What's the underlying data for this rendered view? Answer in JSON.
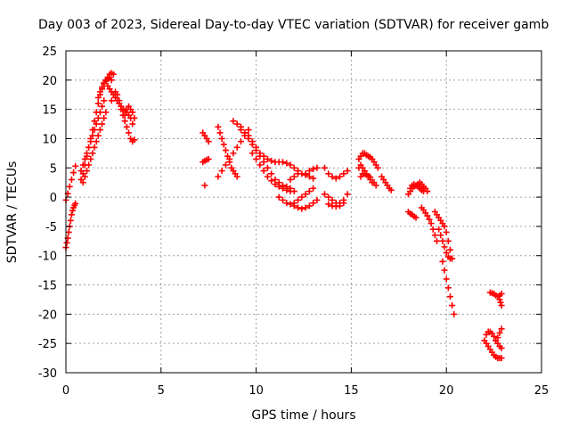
{
  "chart_data": {
    "type": "scatter",
    "title": "Day 003 of 2023, Sidereal Day-to-day VTEC variation (SDTVAR) for receiver gamb",
    "xlabel": "GPS time / hours",
    "ylabel": "SDTVAR / TECUs",
    "xlim": [
      0,
      25
    ],
    "ylim": [
      -30,
      25
    ],
    "xticks": [
      0,
      5,
      10,
      15,
      20,
      25
    ],
    "yticks": [
      -30,
      -25,
      -20,
      -15,
      -10,
      -5,
      0,
      5,
      10,
      15,
      20,
      25
    ],
    "grid": true,
    "marker": "+",
    "color": "#ff0000",
    "segments": [
      {
        "x": [
          0.0,
          0.05,
          0.1,
          0.15,
          0.2,
          0.25,
          0.3,
          0.35,
          0.4,
          0.45,
          0.5
        ],
        "y": [
          -8.6,
          -7.8,
          -7.0,
          -6.0,
          -5.0,
          -4.0,
          -3.0,
          -2.3,
          -1.8,
          -1.4,
          -1.1
        ]
      },
      {
        "x": [
          0.0,
          0.1,
          0.2,
          0.3,
          0.4,
          0.5
        ],
        "y": [
          -0.5,
          0.6,
          1.8,
          3.0,
          4.2,
          5.3
        ]
      },
      {
        "x": [
          0.8,
          0.9,
          1.0,
          1.1,
          1.2,
          1.3,
          1.4,
          1.5,
          1.6,
          1.7,
          1.8,
          1.9,
          2.0,
          2.1,
          2.2,
          2.3,
          2.4,
          2.5
        ],
        "y": [
          3.0,
          4.0,
          5.5,
          7.0,
          8.5,
          10.0,
          11.5,
          13.0,
          14.5,
          16.0,
          17.5,
          18.5,
          19.5,
          20.0,
          20.5,
          21.0,
          21.2,
          21.0
        ]
      },
      {
        "x": [
          0.9,
          1.0,
          1.1,
          1.2,
          1.3,
          1.4,
          1.5,
          1.6,
          1.7,
          1.8,
          1.9,
          2.0,
          2.1
        ],
        "y": [
          2.5,
          3.5,
          4.5,
          5.5,
          6.5,
          7.5,
          8.5,
          9.5,
          10.5,
          11.5,
          12.5,
          13.5,
          14.5
        ]
      },
      {
        "x": [
          0.8,
          0.9,
          1.0,
          1.1,
          1.2,
          1.3,
          1.4,
          1.5,
          1.6,
          1.7,
          1.8,
          1.9,
          2.0
        ],
        "y": [
          4.5,
          5.5,
          6.5,
          7.5,
          8.5,
          9.5,
          10.5,
          11.5,
          12.5,
          13.5,
          14.5,
          15.5,
          16.5
        ]
      },
      {
        "x": [
          1.7,
          1.8,
          1.9,
          2.0,
          2.1,
          2.2,
          2.3,
          2.4
        ],
        "y": [
          17.0,
          18.0,
          18.8,
          19.4,
          19.8,
          20.2,
          20.4,
          20.0
        ]
      },
      {
        "x": [
          2.2,
          2.3,
          2.4,
          2.5,
          2.6,
          2.7,
          2.8,
          2.9,
          3.0,
          3.1,
          3.2,
          3.3,
          3.4,
          3.5
        ],
        "y": [
          19.0,
          18.5,
          18.0,
          17.5,
          17.0,
          16.5,
          16.0,
          15.5,
          15.0,
          14.8,
          14.5,
          14.0,
          13.5,
          12.5
        ]
      },
      {
        "x": [
          2.4,
          2.5,
          2.6,
          2.7,
          2.8,
          2.9,
          3.0,
          3.1,
          3.2,
          3.3,
          3.4,
          3.5,
          3.6
        ],
        "y": [
          16.5,
          17.5,
          18.0,
          17.5,
          16.5,
          15.0,
          14.0,
          13.0,
          12.0,
          11.0,
          10.0,
          9.5,
          9.8
        ]
      },
      {
        "x": [
          3.1,
          3.2,
          3.3,
          3.4,
          3.5,
          3.6
        ],
        "y": [
          14.0,
          15.0,
          15.5,
          15.0,
          14.5,
          13.5
        ]
      },
      {
        "x": [
          7.2,
          7.3,
          7.4,
          7.5
        ],
        "y": [
          11.0,
          10.5,
          10.0,
          9.5
        ]
      },
      {
        "x": [
          7.2,
          7.3,
          7.4,
          7.5
        ],
        "y": [
          6.0,
          6.2,
          6.4,
          6.5
        ]
      },
      {
        "x": [
          7.3
        ],
        "y": [
          2.0
        ]
      },
      {
        "x": [
          8.0,
          8.1,
          8.2,
          8.3,
          8.4,
          8.5,
          8.6,
          8.7,
          8.8,
          8.9,
          9.0
        ],
        "y": [
          12.0,
          11.0,
          10.0,
          9.0,
          8.0,
          7.0,
          6.0,
          5.0,
          4.5,
          4.0,
          3.5
        ]
      },
      {
        "x": [
          8.0,
          8.2,
          8.4,
          8.6,
          8.8,
          9.0,
          9.2,
          9.4,
          9.6
        ],
        "y": [
          3.5,
          4.5,
          5.5,
          6.5,
          7.5,
          8.5,
          9.5,
          10.5,
          11.5
        ]
      },
      {
        "x": [
          8.8,
          9.0,
          9.2,
          9.4,
          9.6,
          9.8,
          10.0,
          10.2,
          10.4,
          10.6,
          10.8,
          11.0,
          11.2,
          11.4,
          11.6,
          11.8
        ],
        "y": [
          13.0,
          12.5,
          12.0,
          11.0,
          10.0,
          9.0,
          8.0,
          7.0,
          6.0,
          5.0,
          4.0,
          3.0,
          2.5,
          2.0,
          1.8,
          1.5
        ]
      },
      {
        "x": [
          9.2,
          9.4,
          9.6,
          9.8,
          10.0,
          10.2,
          10.4,
          10.6,
          10.8,
          11.0,
          11.2,
          11.4,
          11.6,
          11.8,
          12.0,
          12.2
        ],
        "y": [
          11.5,
          11.0,
          10.5,
          9.5,
          8.5,
          7.5,
          7.0,
          6.5,
          6.2,
          6.0,
          6.0,
          6.0,
          5.8,
          5.5,
          5.0,
          4.5
        ]
      },
      {
        "x": [
          9.8,
          10.0,
          10.2,
          10.4,
          10.6,
          10.8,
          11.0,
          11.2,
          11.4,
          11.6,
          11.8,
          12.0
        ],
        "y": [
          7.5,
          6.5,
          5.5,
          4.5,
          3.5,
          2.8,
          2.2,
          1.8,
          1.5,
          1.2,
          1.0,
          1.0
        ]
      },
      {
        "x": [
          11.2,
          11.4,
          11.6,
          11.8,
          12.0,
          12.2,
          12.4,
          12.6,
          12.8,
          13.0
        ],
        "y": [
          0.0,
          -0.5,
          -1.0,
          -1.2,
          -1.0,
          -0.5,
          0.0,
          0.5,
          1.0,
          1.5
        ]
      },
      {
        "x": [
          11.8,
          12.0,
          12.2,
          12.4,
          12.6,
          12.8,
          13.0
        ],
        "y": [
          3.0,
          3.5,
          4.0,
          4.0,
          3.8,
          3.5,
          3.2
        ]
      },
      {
        "x": [
          12.0,
          12.2,
          12.4,
          12.6,
          12.8,
          13.0,
          13.2
        ],
        "y": [
          -1.5,
          -1.8,
          -2.0,
          -1.8,
          -1.5,
          -1.0,
          -0.5
        ]
      },
      {
        "x": [
          12.6,
          12.8,
          13.0,
          13.2
        ],
        "y": [
          4.0,
          4.5,
          4.8,
          5.0
        ]
      },
      {
        "x": [
          13.6,
          13.8,
          14.0,
          14.2,
          14.4,
          14.6,
          14.8
        ],
        "y": [
          5.0,
          4.0,
          3.5,
          3.2,
          3.5,
          4.0,
          4.5
        ]
      },
      {
        "x": [
          13.6,
          13.8,
          14.0,
          14.2,
          14.4,
          14.6,
          14.8
        ],
        "y": [
          0.5,
          0.0,
          -0.5,
          -1.0,
          -1.0,
          -0.5,
          0.5
        ]
      },
      {
        "x": [
          13.8,
          14.0,
          14.2,
          14.4,
          14.6
        ],
        "y": [
          -1.2,
          -1.5,
          -1.6,
          -1.5,
          -1.0
        ]
      },
      {
        "x": [
          15.4,
          15.5,
          15.6,
          15.7,
          15.8,
          15.9,
          16.0,
          16.1,
          16.2,
          16.3,
          16.4
        ],
        "y": [
          6.5,
          7.0,
          7.5,
          7.5,
          7.2,
          7.0,
          6.8,
          6.5,
          6.0,
          5.5,
          5.0
        ]
      },
      {
        "x": [
          15.4,
          15.5,
          15.6,
          15.7,
          15.8,
          15.9,
          16.0,
          16.1,
          16.2,
          16.3
        ],
        "y": [
          5.0,
          5.5,
          5.0,
          4.5,
          4.0,
          3.5,
          3.0,
          2.5,
          2.5,
          2.0
        ]
      },
      {
        "x": [
          15.5,
          15.6,
          15.7,
          15.8,
          15.9,
          16.0
        ],
        "y": [
          3.5,
          4.0,
          4.0,
          3.8,
          3.6,
          3.4
        ]
      },
      {
        "x": [
          16.6,
          16.7,
          16.8,
          16.9,
          17.0,
          17.1
        ],
        "y": [
          3.5,
          3.0,
          2.5,
          2.0,
          1.5,
          1.2
        ]
      },
      {
        "x": [
          18.0,
          18.1,
          18.2,
          18.3,
          18.4,
          18.5,
          18.6,
          18.7,
          18.8,
          18.9,
          19.0
        ],
        "y": [
          0.5,
          1.0,
          1.5,
          1.8,
          2.0,
          2.2,
          2.5,
          2.2,
          1.8,
          1.5,
          1.0
        ]
      },
      {
        "x": [
          18.1,
          18.2,
          18.3,
          18.4,
          18.5,
          18.6,
          18.7,
          18.8
        ],
        "y": [
          1.5,
          2.0,
          2.2,
          2.0,
          1.8,
          1.5,
          1.2,
          1.0
        ]
      },
      {
        "x": [
          18.0,
          18.1,
          18.2,
          18.3,
          18.4
        ],
        "y": [
          -2.5,
          -2.8,
          -3.0,
          -3.3,
          -3.5
        ]
      },
      {
        "x": [
          18.7,
          18.8,
          18.9,
          19.0,
          19.1,
          19.2,
          19.3,
          19.4,
          19.5
        ],
        "y": [
          -1.8,
          -2.2,
          -2.7,
          -3.2,
          -3.8,
          -4.5,
          -5.5,
          -6.5,
          -7.5
        ]
      },
      {
        "x": [
          19.4,
          19.5,
          19.6,
          19.7,
          19.8,
          19.9,
          20.0,
          20.1,
          20.2,
          20.3
        ],
        "y": [
          -2.5,
          -3.0,
          -3.5,
          -4.0,
          -4.5,
          -5.0,
          -6.0,
          -7.5,
          -9.0,
          -10.5
        ]
      },
      {
        "x": [
          19.6,
          19.7,
          19.8,
          19.9,
          20.0,
          20.1,
          20.2,
          20.3
        ],
        "y": [
          -5.5,
          -6.5,
          -7.5,
          -8.5,
          -9.5,
          -10.2,
          -10.5,
          -10.5
        ]
      },
      {
        "x": [
          19.8,
          19.9,
          20.0,
          20.1,
          20.2,
          20.3,
          20.4
        ],
        "y": [
          -11.0,
          -12.5,
          -14.0,
          -15.5,
          -17.0,
          -18.5,
          -20.0
        ]
      },
      {
        "x": [
          22.3,
          22.4,
          22.5,
          22.6,
          22.7,
          22.8,
          22.9
        ],
        "y": [
          -16.3,
          -16.4,
          -16.5,
          -16.8,
          -17.0,
          -16.8,
          -16.5
        ]
      },
      {
        "x": [
          22.8,
          22.85,
          22.9
        ],
        "y": [
          -17.5,
          -18.0,
          -18.5
        ]
      },
      {
        "x": [
          22.0,
          22.1,
          22.2,
          22.3,
          22.4,
          22.5,
          22.6,
          22.7,
          22.8,
          22.9
        ],
        "y": [
          -24.5,
          -23.5,
          -23.0,
          -23.0,
          -23.3,
          -23.8,
          -24.5,
          -25.0,
          -25.5,
          -25.8
        ]
      },
      {
        "x": [
          22.1,
          22.2,
          22.3,
          22.4,
          22.5,
          22.6,
          22.7,
          22.8,
          22.9
        ],
        "y": [
          -25.0,
          -25.5,
          -26.0,
          -26.5,
          -27.0,
          -27.3,
          -27.5,
          -27.5,
          -27.5
        ]
      },
      {
        "x": [
          22.6,
          22.7,
          22.8,
          22.9
        ],
        "y": [
          -24.5,
          -24.0,
          -23.2,
          -22.5
        ]
      }
    ]
  }
}
